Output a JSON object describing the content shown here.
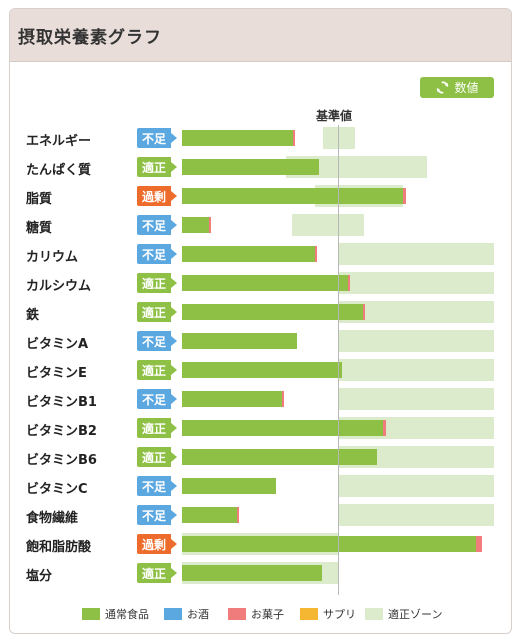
{
  "title": "摂取栄養素グラフ",
  "value_button": {
    "label": "数値",
    "icon": "refresh-icon"
  },
  "baseline_label": "基準値",
  "colors": {
    "food": "#8dc044",
    "alcohol": "#5ba8e1",
    "sweets": "#f07c7c",
    "supplement": "#f5b731",
    "zone": "#dcebcb",
    "status_insufficient": "#5ba8e1",
    "status_appropriate": "#8dc044",
    "status_excess": "#ee6c2b"
  },
  "status_labels": {
    "insufficient": "不足",
    "appropriate": "適正",
    "excess": "過剰"
  },
  "nutrients": [
    {
      "name": "エネルギー",
      "status": "insufficient",
      "status_label": "不足",
      "food": 0.71,
      "sweets": 0.01,
      "zone": [
        0.9,
        1.1
      ]
    },
    {
      "name": "たんぱく質",
      "status": "appropriate",
      "status_label": "適正",
      "food": 0.87,
      "sweets": 0,
      "zone": [
        0.66,
        1.56
      ]
    },
    {
      "name": "脂質",
      "status": "excess",
      "status_label": "過剰",
      "food": 1.41,
      "sweets": 0.02,
      "zone": [
        0.85,
        1.41
      ]
    },
    {
      "name": "糖質",
      "status": "insufficient",
      "status_label": "不足",
      "food": 0.17,
      "sweets": 0.01,
      "zone": [
        0.7,
        1.16
      ]
    },
    {
      "name": "カリウム",
      "status": "insufficient",
      "status_label": "不足",
      "food": 0.85,
      "sweets": 0.01,
      "zone": [
        1.0,
        2.0
      ]
    },
    {
      "name": "カルシウム",
      "status": "appropriate",
      "status_label": "適正",
      "food": 1.06,
      "sweets": 0.01,
      "zone": [
        1.0,
        2.0
      ]
    },
    {
      "name": "鉄",
      "status": "appropriate",
      "status_label": "適正",
      "food": 1.15,
      "sweets": 0.01,
      "zone": [
        1.0,
        2.0
      ]
    },
    {
      "name": "ビタミンA",
      "status": "insufficient",
      "status_label": "不足",
      "food": 0.73,
      "sweets": 0,
      "zone": [
        1.0,
        2.0
      ]
    },
    {
      "name": "ビタミンE",
      "status": "appropriate",
      "status_label": "適正",
      "food": 1.02,
      "sweets": 0,
      "zone": [
        1.0,
        2.0
      ]
    },
    {
      "name": "ビタミンB1",
      "status": "insufficient",
      "status_label": "不足",
      "food": 0.64,
      "sweets": 0.01,
      "zone": [
        1.0,
        2.0
      ]
    },
    {
      "name": "ビタミンB2",
      "status": "appropriate",
      "status_label": "適正",
      "food": 1.28,
      "sweets": 0.02,
      "zone": [
        1.0,
        2.0
      ]
    },
    {
      "name": "ビタミンB6",
      "status": "appropriate",
      "status_label": "適正",
      "food": 1.24,
      "sweets": 0,
      "zone": [
        1.0,
        2.0
      ]
    },
    {
      "name": "ビタミンC",
      "status": "insufficient",
      "status_label": "不足",
      "food": 0.6,
      "sweets": 0,
      "zone": [
        1.0,
        2.0
      ]
    },
    {
      "name": "食物繊維",
      "status": "insufficient",
      "status_label": "不足",
      "food": 0.35,
      "sweets": 0.01,
      "zone": [
        1.0,
        2.0
      ]
    },
    {
      "name": "飽和脂肪酸",
      "status": "excess",
      "status_label": "過剰",
      "food": 1.87,
      "sweets": 0.04,
      "zone": [
        0.0,
        1.0
      ]
    },
    {
      "name": "塩分",
      "status": "appropriate",
      "status_label": "適正",
      "food": 0.89,
      "sweets": 0,
      "zone": [
        0.0,
        1.0
      ]
    }
  ],
  "legend": [
    {
      "label": "通常食品",
      "color": "#8dc044"
    },
    {
      "label": "お酒",
      "color": "#5ba8e1"
    },
    {
      "label": "お菓子",
      "color": "#f07c7c"
    },
    {
      "label": "サプリ",
      "color": "#f5b731"
    },
    {
      "label": "適正ゾーン",
      "color": "#dcebcb"
    }
  ]
}
